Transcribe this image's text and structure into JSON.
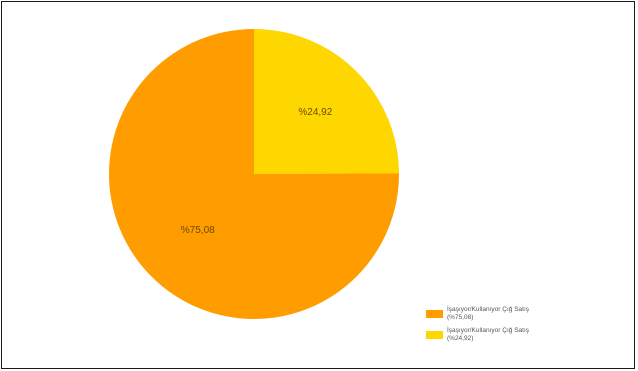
{
  "chart_data": {
    "type": "pie",
    "title": "",
    "slices": [
      {
        "label": "İşaşıyor/Kullanıyor Çığ Satış (%75,08)",
        "value": 75.08,
        "display": "%75,08",
        "color": "#FF9D00"
      },
      {
        "label": "İşaşıyor/Kullanıyor Çığ Satış (%24,92)",
        "value": 24.92,
        "display": "%24,92",
        "color": "#FFD700"
      }
    ],
    "legend_position": "bottom-right"
  }
}
